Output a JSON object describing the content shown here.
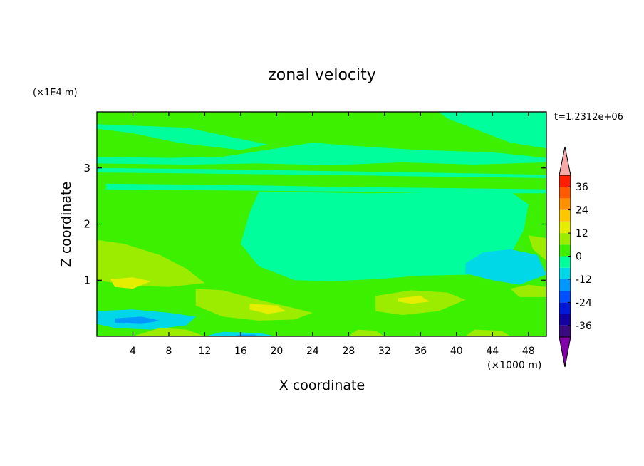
{
  "chart_data": {
    "type": "heatmap",
    "title": "zonal velocity",
    "xlabel": "X coordinate",
    "ylabel": "Z coordinate",
    "x_unit": "(×1000 m)",
    "y_unit": "(×1E4 m)",
    "time_label": "t=1.2312e+06",
    "xlim": [
      0,
      50
    ],
    "ylim": [
      0,
      4
    ],
    "x_ticks": [
      "4",
      "8",
      "12",
      "16",
      "20",
      "24",
      "28",
      "32",
      "36",
      "40",
      "44",
      "48"
    ],
    "x_tick_values": [
      4,
      8,
      12,
      16,
      20,
      24,
      28,
      32,
      36,
      40,
      44,
      48
    ],
    "y_ticks": [
      "1",
      "2",
      "3"
    ],
    "y_tick_values": [
      1,
      2,
      3
    ],
    "colorbar": {
      "levels": [
        -42,
        -36,
        -30,
        -24,
        -18,
        -12,
        -6,
        0,
        6,
        12,
        18,
        24,
        30,
        36,
        42
      ],
      "labels": [
        "36",
        "24",
        "12",
        "0",
        "-12",
        "-24",
        "-36"
      ],
      "label_values": [
        36,
        24,
        12,
        0,
        -12,
        -24,
        -36
      ],
      "colors": [
        "#3a0a80",
        "#1400a0",
        "#0018d8",
        "#0050ff",
        "#0098ff",
        "#00d8e8",
        "#00ff9c",
        "#3cf000",
        "#9cec00",
        "#e6ee00",
        "#ffc800",
        "#ff9000",
        "#ff5a00",
        "#ff1e00"
      ],
      "over_color": "#f4a8a8",
      "under_color": "#8000a8"
    },
    "field": {
      "note_units": "contoured zonal velocity, approximate regions",
      "background_value": 3,
      "regions": [
        {
          "value": -3,
          "poly": [
            [
              18,
              2.58
            ],
            [
              30,
              2.55
            ],
            [
              46,
              2.58
            ],
            [
              48,
              2.35
            ],
            [
              47.5,
              1.9
            ],
            [
              46,
              1.45
            ],
            [
              42,
              1.1
            ],
            [
              36,
              1.08
            ],
            [
              31,
              1.02
            ],
            [
              26,
              0.98
            ],
            [
              22,
              1.0
            ],
            [
              18,
              1.25
            ],
            [
              16,
              1.65
            ],
            [
              17,
              2.2
            ]
          ]
        },
        {
          "value": -3,
          "poly": [
            [
              1,
              2.72
            ],
            [
              14,
              2.7
            ],
            [
              28,
              2.66
            ],
            [
              40,
              2.64
            ],
            [
              50,
              2.62
            ],
            [
              50,
              2.55
            ],
            [
              40,
              2.55
            ],
            [
              28,
              2.58
            ],
            [
              14,
              2.6
            ],
            [
              1,
              2.62
            ]
          ]
        },
        {
          "value": -3,
          "poly": [
            [
              0,
              3.2
            ],
            [
              8,
              3.18
            ],
            [
              14,
              3.2
            ],
            [
              20,
              3.35
            ],
            [
              24,
              3.45
            ],
            [
              28,
              3.4
            ],
            [
              36,
              3.32
            ],
            [
              44,
              3.28
            ],
            [
              50,
              3.18
            ],
            [
              50,
              3.1
            ],
            [
              42,
              3.06
            ],
            [
              34,
              3.1
            ],
            [
              26,
              3.05
            ],
            [
              18,
              3.08
            ],
            [
              10,
              3.06
            ],
            [
              0,
              3.08
            ]
          ]
        },
        {
          "value": -3,
          "poly": [
            [
              0,
              3.0
            ],
            [
              12,
              2.98
            ],
            [
              24,
              2.95
            ],
            [
              36,
              2.92
            ],
            [
              50,
              2.88
            ],
            [
              50,
              2.82
            ],
            [
              36,
              2.85
            ],
            [
              24,
              2.88
            ],
            [
              12,
              2.9
            ],
            [
              0,
              2.92
            ]
          ]
        },
        {
          "value": -3,
          "poly": [
            [
              38,
              4.0
            ],
            [
              50,
              4.0
            ],
            [
              50,
              3.35
            ],
            [
              46,
              3.45
            ],
            [
              42,
              3.7
            ],
            [
              39,
              3.88
            ]
          ]
        },
        {
          "value": -3,
          "poly": [
            [
              0,
              3.7
            ],
            [
              4,
              3.62
            ],
            [
              9,
              3.45
            ],
            [
              16,
              3.32
            ],
            [
              19,
              3.42
            ],
            [
              15,
              3.55
            ],
            [
              10,
              3.72
            ],
            [
              0,
              3.78
            ]
          ]
        },
        {
          "value": -9,
          "poly": [
            [
              41,
              1.3
            ],
            [
              43,
              1.5
            ],
            [
              46,
              1.55
            ],
            [
              49,
              1.45
            ],
            [
              50,
              1.1
            ],
            [
              47,
              0.92
            ],
            [
              44,
              1.0
            ],
            [
              41,
              1.12
            ]
          ]
        },
        {
          "value": 9,
          "poly": [
            [
              0,
              1.72
            ],
            [
              3,
              1.65
            ],
            [
              7,
              1.45
            ],
            [
              10,
              1.2
            ],
            [
              12,
              0.95
            ],
            [
              8,
              0.88
            ],
            [
              4,
              0.9
            ],
            [
              0,
              1.0
            ]
          ]
        },
        {
          "value": 15,
          "poly": [
            [
              1.5,
              1.02
            ],
            [
              4,
              1.05
            ],
            [
              6,
              0.98
            ],
            [
              4,
              0.85
            ],
            [
              2,
              0.88
            ]
          ]
        },
        {
          "value": 9,
          "poly": [
            [
              11,
              0.85
            ],
            [
              14,
              0.82
            ],
            [
              18,
              0.65
            ],
            [
              22,
              0.5
            ],
            [
              24,
              0.42
            ],
            [
              22,
              0.3
            ],
            [
              18,
              0.28
            ],
            [
              14,
              0.35
            ],
            [
              11,
              0.55
            ]
          ]
        },
        {
          "value": 15,
          "poly": [
            [
              17,
              0.58
            ],
            [
              20,
              0.55
            ],
            [
              21,
              0.45
            ],
            [
              19,
              0.4
            ],
            [
              17,
              0.48
            ]
          ]
        },
        {
          "value": 9,
          "poly": [
            [
              31,
              0.72
            ],
            [
              35,
              0.82
            ],
            [
              39,
              0.78
            ],
            [
              41,
              0.65
            ],
            [
              38,
              0.45
            ],
            [
              34,
              0.38
            ],
            [
              31,
              0.45
            ]
          ]
        },
        {
          "value": 15,
          "poly": [
            [
              33.5,
              0.68
            ],
            [
              36,
              0.72
            ],
            [
              37,
              0.62
            ],
            [
              35,
              0.58
            ],
            [
              33.5,
              0.62
            ]
          ]
        },
        {
          "value": -9,
          "poly": [
            [
              0,
              0.45
            ],
            [
              4,
              0.48
            ],
            [
              8,
              0.42
            ],
            [
              11,
              0.35
            ],
            [
              10,
              0.2
            ],
            [
              6,
              0.12
            ],
            [
              2,
              0.15
            ],
            [
              0,
              0.22
            ]
          ]
        },
        {
          "value": -15,
          "poly": [
            [
              2,
              0.32
            ],
            [
              5,
              0.35
            ],
            [
              7,
              0.28
            ],
            [
              5,
              0.22
            ],
            [
              2,
              0.24
            ]
          ]
        },
        {
          "value": 9,
          "poly": [
            [
              4,
              0.0
            ],
            [
              7,
              0.15
            ],
            [
              10,
              0.12
            ],
            [
              12,
              0.0
            ]
          ]
        },
        {
          "value": -9,
          "poly": [
            [
              12,
              0.0
            ],
            [
              14,
              0.08
            ],
            [
              18,
              0.06
            ],
            [
              20,
              0.0
            ]
          ]
        },
        {
          "value": -15,
          "poly": [
            [
              15,
              0.0
            ],
            [
              16,
              0.03
            ],
            [
              17.5,
              0.03
            ],
            [
              18,
              0.0
            ]
          ]
        },
        {
          "value": 9,
          "poly": [
            [
              28,
              0.0
            ],
            [
              29,
              0.12
            ],
            [
              31,
              0.1
            ],
            [
              32,
              0.0
            ]
          ]
        },
        {
          "value": 9,
          "poly": [
            [
              41,
              0.0
            ],
            [
              42,
              0.12
            ],
            [
              45,
              0.1
            ],
            [
              46,
              0.0
            ]
          ]
        },
        {
          "value": 9,
          "poly": [
            [
              48,
              1.8
            ],
            [
              50,
              1.75
            ],
            [
              50,
              1.35
            ],
            [
              48.5,
              1.55
            ]
          ]
        },
        {
          "value": 9,
          "poly": [
            [
              46,
              0.85
            ],
            [
              48,
              0.92
            ],
            [
              50,
              0.88
            ],
            [
              50,
              0.7
            ],
            [
              47,
              0.7
            ]
          ]
        }
      ]
    }
  }
}
